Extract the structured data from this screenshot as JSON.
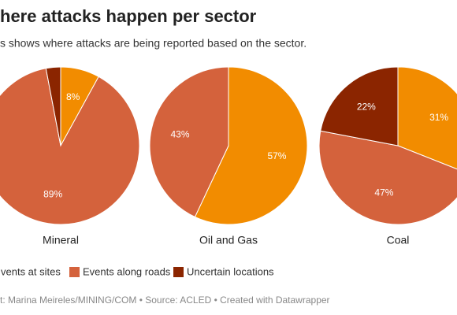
{
  "title": "here attacks happen per sector",
  "subtitle": "s shows where attacks are being reported based on the sector.",
  "legend": {
    "names": [
      "vents at sites",
      "Events along roads",
      "Uncertain locations"
    ],
    "colors": [
      "#f28c00",
      "#d4623c",
      "#8b2500"
    ]
  },
  "footer": "t: Marina Meireles/MINING/COM • Source: ACLED • Created with Datawrapper",
  "chart_data": [
    {
      "type": "pie",
      "title": "Mineral",
      "values": [
        8,
        89,
        3
      ],
      "value_labels": [
        "8%",
        "89%",
        null
      ],
      "colors": [
        "#f28c00",
        "#d4623c",
        "#8b2500"
      ]
    },
    {
      "type": "pie",
      "title": "Oil and Gas",
      "values": [
        57,
        43
      ],
      "value_labels": [
        "57%",
        "43%"
      ],
      "colors": [
        "#f28c00",
        "#d4623c"
      ]
    },
    {
      "type": "pie",
      "title": "Coal",
      "values": [
        31,
        47,
        22
      ],
      "value_labels": [
        "31%",
        "47%",
        "22%"
      ],
      "colors": [
        "#f28c00",
        "#d4623c",
        "#8b2500"
      ]
    }
  ]
}
